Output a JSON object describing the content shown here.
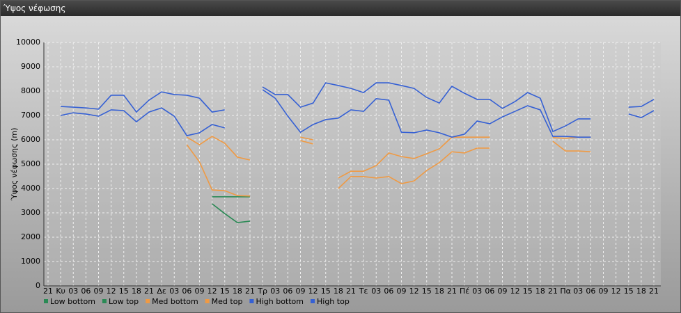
{
  "chart_data": {
    "type": "line",
    "title": "Ύψος νέφωσης",
    "y_label": "Ύψος νέφωσης (m)",
    "categories": [
      "21",
      "Κυ",
      "03",
      "06",
      "09",
      "12",
      "15",
      "18",
      "21",
      "Δε",
      "03",
      "06",
      "09",
      "12",
      "15",
      "18",
      "21",
      "Τρ",
      "03",
      "06",
      "09",
      "12",
      "15",
      "18",
      "21",
      "Τε",
      "03",
      "06",
      "09",
      "12",
      "15",
      "18",
      "21",
      "Πέ",
      "03",
      "06",
      "09",
      "12",
      "15",
      "18",
      "21",
      "Πα",
      "03",
      "06",
      "09",
      "12",
      "15",
      "18",
      "21"
    ],
    "ylim": [
      0,
      10000
    ],
    "yticks": [
      0,
      1000,
      2000,
      3000,
      4000,
      5000,
      6000,
      7000,
      8000,
      9000,
      10000
    ],
    "grid": true,
    "series": [
      {
        "name": "Low bottom",
        "color": "#2a8a55",
        "values": [
          null,
          null,
          null,
          null,
          null,
          null,
          null,
          null,
          null,
          null,
          null,
          null,
          null,
          3370,
          2970,
          2600,
          2660,
          null,
          null,
          null,
          null,
          null,
          null,
          null,
          null,
          null,
          null,
          null,
          null,
          null,
          null,
          null,
          null,
          null,
          null,
          null,
          null,
          null,
          null,
          null,
          null,
          null,
          null,
          null,
          null,
          null,
          null,
          null,
          null
        ]
      },
      {
        "name": "Low top",
        "color": "#2a8a55",
        "values": [
          null,
          null,
          null,
          null,
          null,
          null,
          null,
          null,
          null,
          null,
          null,
          null,
          null,
          3660,
          3660,
          3660,
          3660,
          null,
          null,
          null,
          null,
          null,
          null,
          null,
          null,
          null,
          null,
          null,
          null,
          null,
          null,
          null,
          null,
          null,
          null,
          null,
          null,
          null,
          null,
          null,
          null,
          null,
          null,
          null,
          null,
          null,
          null,
          null,
          null
        ]
      },
      {
        "name": "Med bottom",
        "color": "#ef9a44",
        "values": [
          null,
          null,
          null,
          null,
          null,
          null,
          null,
          null,
          null,
          null,
          null,
          5800,
          5090,
          3940,
          3910,
          3710,
          3690,
          null,
          null,
          null,
          5970,
          5830,
          null,
          4000,
          4490,
          4490,
          4430,
          4490,
          4200,
          4310,
          4740,
          5060,
          5510,
          5460,
          5660,
          5660,
          null,
          null,
          null,
          null,
          5940,
          5540,
          5540,
          5510,
          null,
          null,
          null,
          null,
          null
        ]
      },
      {
        "name": "Med top",
        "color": "#ef9a44",
        "values": [
          null,
          null,
          null,
          null,
          null,
          null,
          null,
          null,
          null,
          null,
          null,
          6110,
          5800,
          6140,
          5860,
          5290,
          5170,
          null,
          null,
          null,
          6110,
          6000,
          null,
          4430,
          4710,
          4710,
          4940,
          5460,
          5310,
          5230,
          5430,
          5630,
          6110,
          6110,
          6110,
          6110,
          null,
          null,
          null,
          null,
          6090,
          6060,
          6110,
          6110,
          null,
          null,
          null,
          null,
          null
        ]
      },
      {
        "name": "High bottom",
        "color": "#3560d4",
        "values": [
          null,
          7000,
          7110,
          7060,
          6970,
          7230,
          7200,
          6740,
          7140,
          7310,
          6970,
          6170,
          6290,
          6630,
          6490,
          null,
          null,
          8060,
          7710,
          6970,
          6310,
          6630,
          6830,
          6890,
          7230,
          7170,
          7690,
          7630,
          6310,
          6290,
          6400,
          6290,
          6110,
          6230,
          6770,
          6660,
          6940,
          7170,
          7400,
          7230,
          6140,
          6140,
          6110,
          6110,
          null,
          null,
          7060,
          6910,
          7200
        ]
      },
      {
        "name": "High top",
        "color": "#3560d4",
        "values": [
          null,
          7370,
          7340,
          7310,
          7260,
          7830,
          7830,
          7140,
          7630,
          7970,
          7860,
          7830,
          7710,
          7140,
          7230,
          null,
          null,
          8170,
          7860,
          7860,
          7340,
          7510,
          8340,
          8230,
          8110,
          7940,
          8340,
          8340,
          8230,
          8110,
          7740,
          7510,
          8200,
          7910,
          7660,
          7660,
          7290,
          7570,
          7940,
          7710,
          6340,
          6570,
          6860,
          6860,
          null,
          null,
          7340,
          7370,
          7660
        ]
      }
    ]
  }
}
